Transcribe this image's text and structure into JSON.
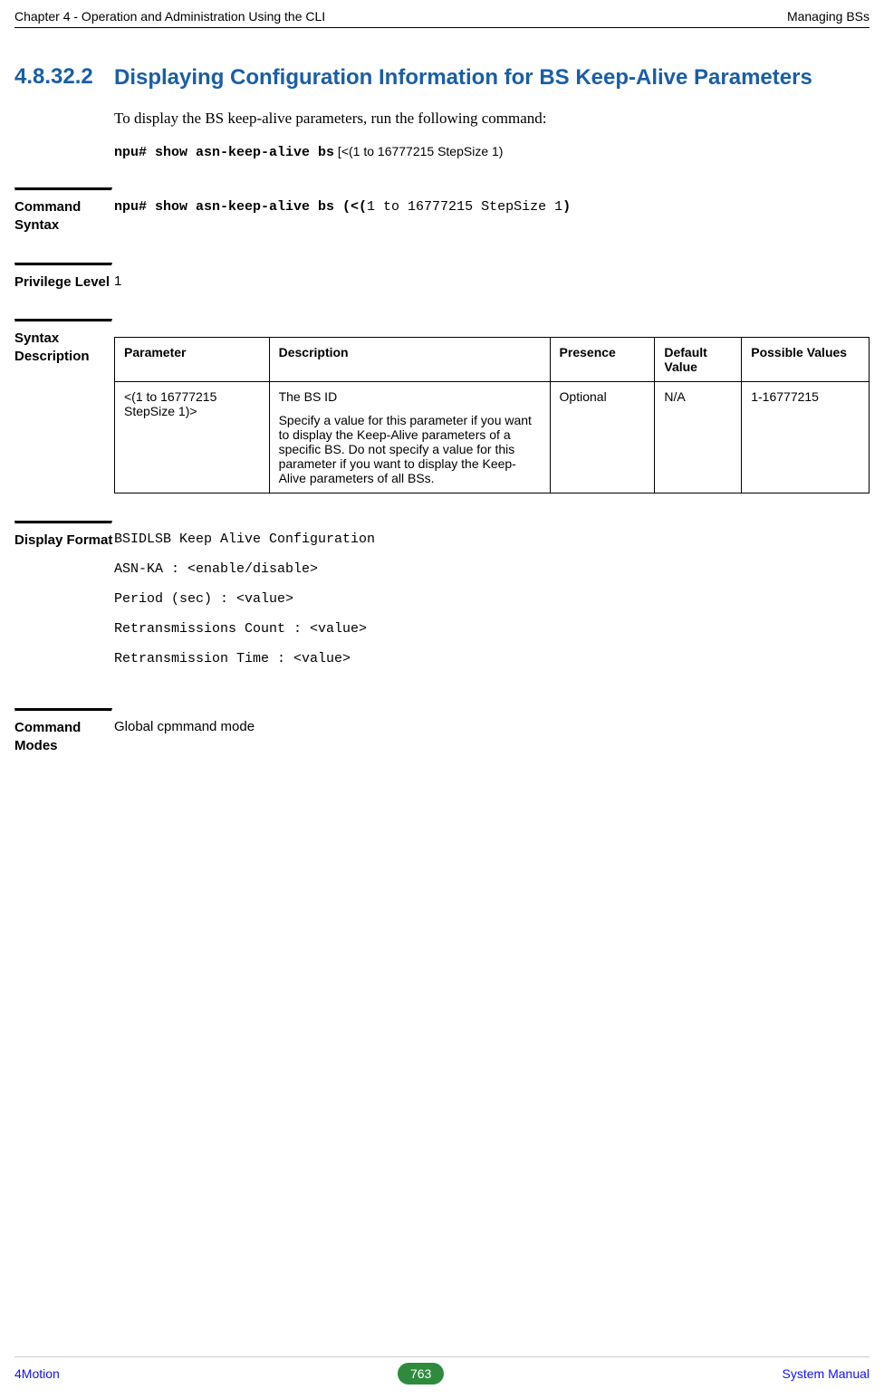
{
  "header": {
    "left": "Chapter 4 - Operation and Administration Using the CLI",
    "right": "Managing BSs"
  },
  "section": {
    "number": "4.8.32.2",
    "title": "Displaying Configuration Information for BS Keep-Alive Parameters"
  },
  "intro": " To display the BS keep-alive parameters, run the following command:",
  "command_example_prefix": "npu# show asn-keep-alive bs",
  "command_example_suffix": " [<(1 to 16777215 StepSize 1)",
  "command_syntax": {
    "label": "Command Syntax",
    "prefix": "npu# show asn-keep-alive bs (<(",
    "middle": "1 to 16777215 StepSize 1",
    "suffix": ")"
  },
  "privilege": {
    "label": "Privilege Level",
    "value": "1"
  },
  "syntax_desc": {
    "label": "Syntax Description",
    "columns": [
      "Parameter",
      "Description",
      "Presence",
      "Default Value",
      "Possible Values"
    ],
    "row": {
      "parameter": "<(1 to 16777215 StepSize 1)>",
      "desc_main": "The BS ID",
      "desc_detail": "Specify a value for this parameter if you want to display the Keep-Alive parameters of a specific BS. Do not specify a value for this parameter if you want to display the Keep-Alive parameters of all BSs.",
      "presence": "Optional",
      "default": "N/A",
      "possible": "1-16777215"
    }
  },
  "display_format": {
    "label": "Display Format",
    "lines": [
      "BSIDLSB Keep Alive Configuration",
      "ASN-KA : <enable/disable>",
      "Period (sec) : <value>",
      "Retransmissions Count : <value>",
      "Retransmission Time : <value>"
    ]
  },
  "command_modes": {
    "label": "Command Modes",
    "value": "Global cpmmand mode"
  },
  "footer": {
    "left": "4Motion",
    "page": "763",
    "right": "System Manual"
  },
  "colors": {
    "heading": "#1a5ea6",
    "link": "#1010ff",
    "badge_bg": "#2e8b3d",
    "badge_fg": "#ffffff",
    "rule": "#000000"
  }
}
